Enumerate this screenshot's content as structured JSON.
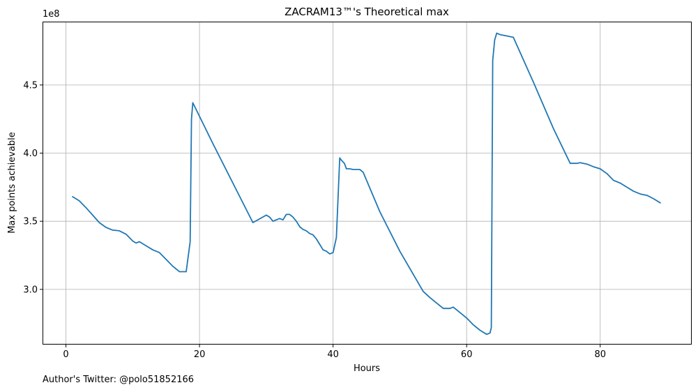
{
  "chart_data": {
    "type": "line",
    "title": "ZACRAM13™'s Theoretical max",
    "xlabel": "Hours",
    "ylabel": "Max points achievable",
    "y_offset_label": "1e8",
    "xlim": [
      -3.4,
      93.6
    ],
    "ylim": [
      260000000.0,
      496000000.0
    ],
    "xticks": [
      0,
      20,
      40,
      60,
      80
    ],
    "xtick_labels": [
      "0",
      "20",
      "40",
      "60",
      "80"
    ],
    "yticks": [
      300000000.0,
      350000000.0,
      400000000.0,
      450000000.0
    ],
    "ytick_labels": [
      "3.0",
      "3.5",
      "4.0",
      "4.5"
    ],
    "grid": true,
    "color": "#1f77b4",
    "series": [
      {
        "x": [
          1.0,
          2.0,
          3.0,
          4.0,
          5.0,
          6.0,
          7.0,
          8.0,
          9.0,
          10.0,
          10.5,
          11.0,
          12.0,
          13.0,
          14.0,
          15.0,
          16.0,
          17.0,
          17.5,
          18.0,
          18.6,
          18.8,
          19.0,
          19.5,
          22.0,
          25.0,
          28.0,
          30.0,
          30.5,
          31.0,
          31.5,
          32.0,
          32.5,
          33.0,
          33.5,
          34.0,
          34.5,
          35.0,
          35.5,
          36.0,
          36.5,
          37.0,
          37.5,
          38.0,
          38.5,
          39.0,
          39.5,
          40.0,
          40.5,
          41.0,
          41.3,
          41.5,
          41.7,
          42.0,
          42.5,
          43.0,
          44.0,
          44.5,
          47.0,
          50.0,
          53.5,
          54.5,
          55.5,
          56.5,
          57.5,
          58.0,
          59.0,
          60.0,
          61.0,
          62.0,
          63.0,
          63.5,
          63.7,
          63.9,
          64.2,
          64.5,
          65.0,
          66.0,
          67.0,
          70.0,
          73.0,
          75.5,
          76.5,
          77.0,
          78.0,
          79.0,
          80.0,
          81.0,
          82.0,
          83.0,
          84.0,
          85.0,
          86.0,
          87.0,
          88.0,
          89.0
        ],
        "y": [
          368000000.0,
          365000000.0,
          360000000.0,
          354500000.0,
          349000000.0,
          345500000.0,
          343500000.0,
          343000000.0,
          340500000.0,
          335500000.0,
          334000000.0,
          335000000.0,
          332000000.0,
          329000000.0,
          327000000.0,
          322000000.0,
          317000000.0,
          313000000.0,
          313000000.0,
          313000000.0,
          335000000.0,
          425000000.0,
          437000000.0,
          432000000.0,
          407000000.0,
          378000000.0,
          349000000.0,
          354500000.0,
          353000000.0,
          350000000.0,
          351000000.0,
          352000000.0,
          351000000.0,
          355000000.0,
          355000000.0,
          353000000.0,
          350000000.0,
          346000000.0,
          344000000.0,
          343000000.0,
          341000000.0,
          340000000.0,
          337000000.0,
          333000000.0,
          329000000.0,
          328000000.0,
          326000000.0,
          327000000.0,
          338000000.0,
          396500000.0,
          394500000.0,
          393500000.0,
          392500000.0,
          388500000.0,
          388500000.0,
          388000000.0,
          388000000.0,
          386000000.0,
          357000000.0,
          328000000.0,
          298500000.0,
          294000000.0,
          290000000.0,
          286000000.0,
          286000000.0,
          287000000.0,
          283000000.0,
          279000000.0,
          274000000.0,
          270000000.0,
          267000000.0,
          268000000.0,
          272000000.0,
          468000000.0,
          483000000.0,
          488000000.0,
          487000000.0,
          486000000.0,
          485000000.0,
          452000000.0,
          418000000.0,
          392500000.0,
          392500000.0,
          393000000.0,
          392000000.0,
          390000000.0,
          388500000.0,
          385000000.0,
          380000000.0,
          378000000.0,
          375000000.0,
          372000000.0,
          370000000.0,
          369000000.0,
          366500000.0,
          363500000.0
        ]
      }
    ]
  },
  "footer": {
    "text": "Author's Twitter: @polo51852166"
  }
}
